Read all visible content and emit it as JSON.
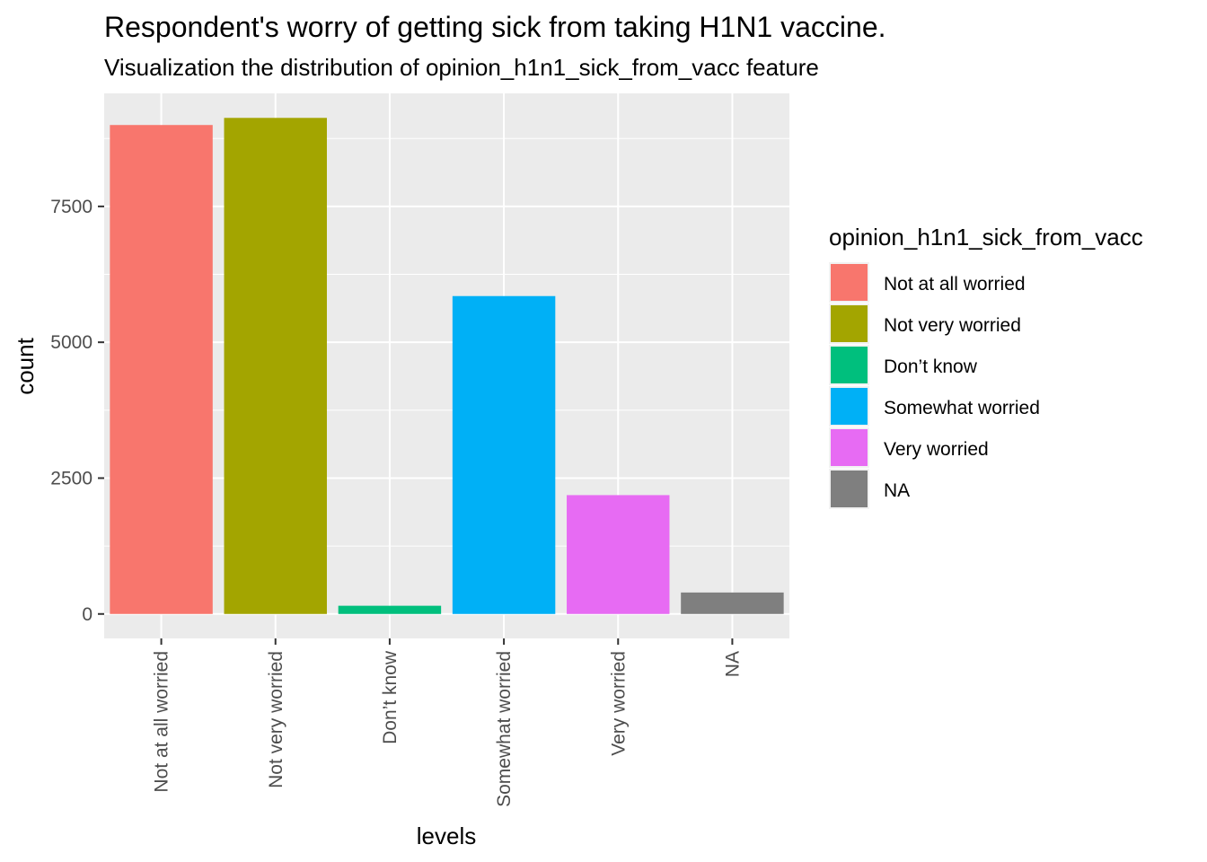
{
  "chart_data": {
    "type": "bar",
    "title": "Respondent's worry of getting sick from taking H1N1 vaccine.",
    "subtitle": "Visualization the distribution of opinion_h1n1_sick_from_vacc feature",
    "xlabel": "levels",
    "ylabel": "count",
    "categories": [
      "Not at all worried",
      "Not very worried",
      "Don’t know",
      "Somewhat worried",
      "Very worried",
      "NA"
    ],
    "values": [
      8998,
      9129,
      151,
      5850,
      2187,
      395
    ],
    "colors": [
      "#F8766D",
      "#A3A500",
      "#00BF7D",
      "#00B0F6",
      "#E76BF3",
      "#7F7F7F"
    ],
    "ylim": [
      -450,
      9580
    ],
    "yticks": [
      0,
      2500,
      5000,
      7500
    ],
    "ytick_labels": [
      "0",
      "2500",
      "5000",
      "7500"
    ],
    "grid": true,
    "panel_background": "#EBEBEB",
    "legend": {
      "title": "opinion_h1n1_sick_from_vacc",
      "position": "right",
      "entries": [
        "Not at all worried",
        "Not very worried",
        "Don’t know",
        "Somewhat worried",
        "Very worried",
        "NA"
      ]
    }
  }
}
